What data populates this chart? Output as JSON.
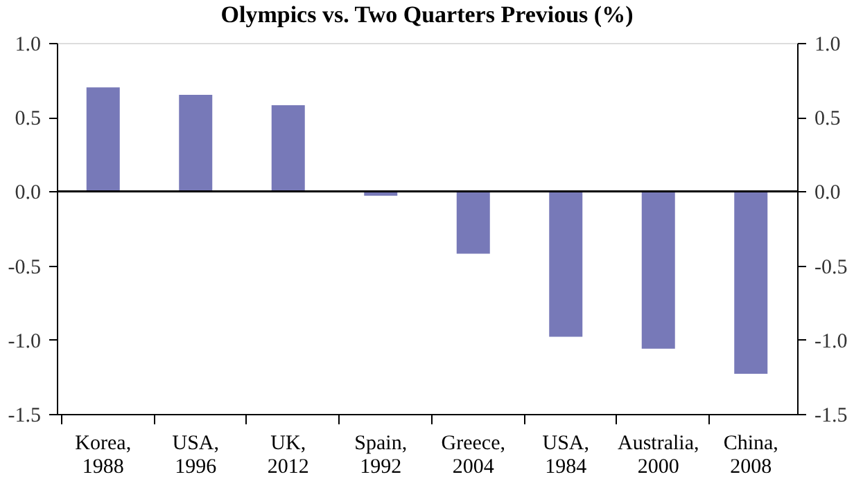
{
  "chart_data": {
    "type": "bar",
    "title": "Olympics vs. Two Quarters Previous (%)",
    "categories": [
      "Korea, 1988",
      "USA, 1996",
      "UK, 2012",
      "Spain, 1992",
      "Greece, 2004",
      "USA, 1984",
      "Australia, 2000",
      "China, 2008"
    ],
    "values": [
      0.7,
      0.65,
      0.58,
      -0.03,
      -0.42,
      -0.98,
      -1.06,
      -1.23
    ],
    "color": "#7779b8",
    "ylim": [
      -1.5,
      1.0
    ],
    "yticks": [
      {
        "value": 1.0,
        "label": "1.0"
      },
      {
        "value": 0.5,
        "label": "0.5"
      },
      {
        "value": 0.0,
        "label": "0.0"
      },
      {
        "value": -0.5,
        "label": "-0.5"
      },
      {
        "value": -1.0,
        "label": "-1.0"
      },
      {
        "value": -1.5,
        "label": "-1.5"
      }
    ],
    "y2lim": [
      -1.5,
      1.0
    ],
    "y2ticks": [
      {
        "value": 1.0,
        "label": "1.0"
      },
      {
        "value": 0.5,
        "label": "0.5"
      },
      {
        "value": 0.0,
        "label": "0.0"
      },
      {
        "value": -0.5,
        "label": "-0.5"
      },
      {
        "value": -1.0,
        "label": "-1.0"
      },
      {
        "value": -1.5,
        "label": "-1.5"
      }
    ],
    "ref_lines": [
      {
        "axis": "y",
        "value": 0,
        "color": "#000000"
      }
    ],
    "grid": false
  }
}
